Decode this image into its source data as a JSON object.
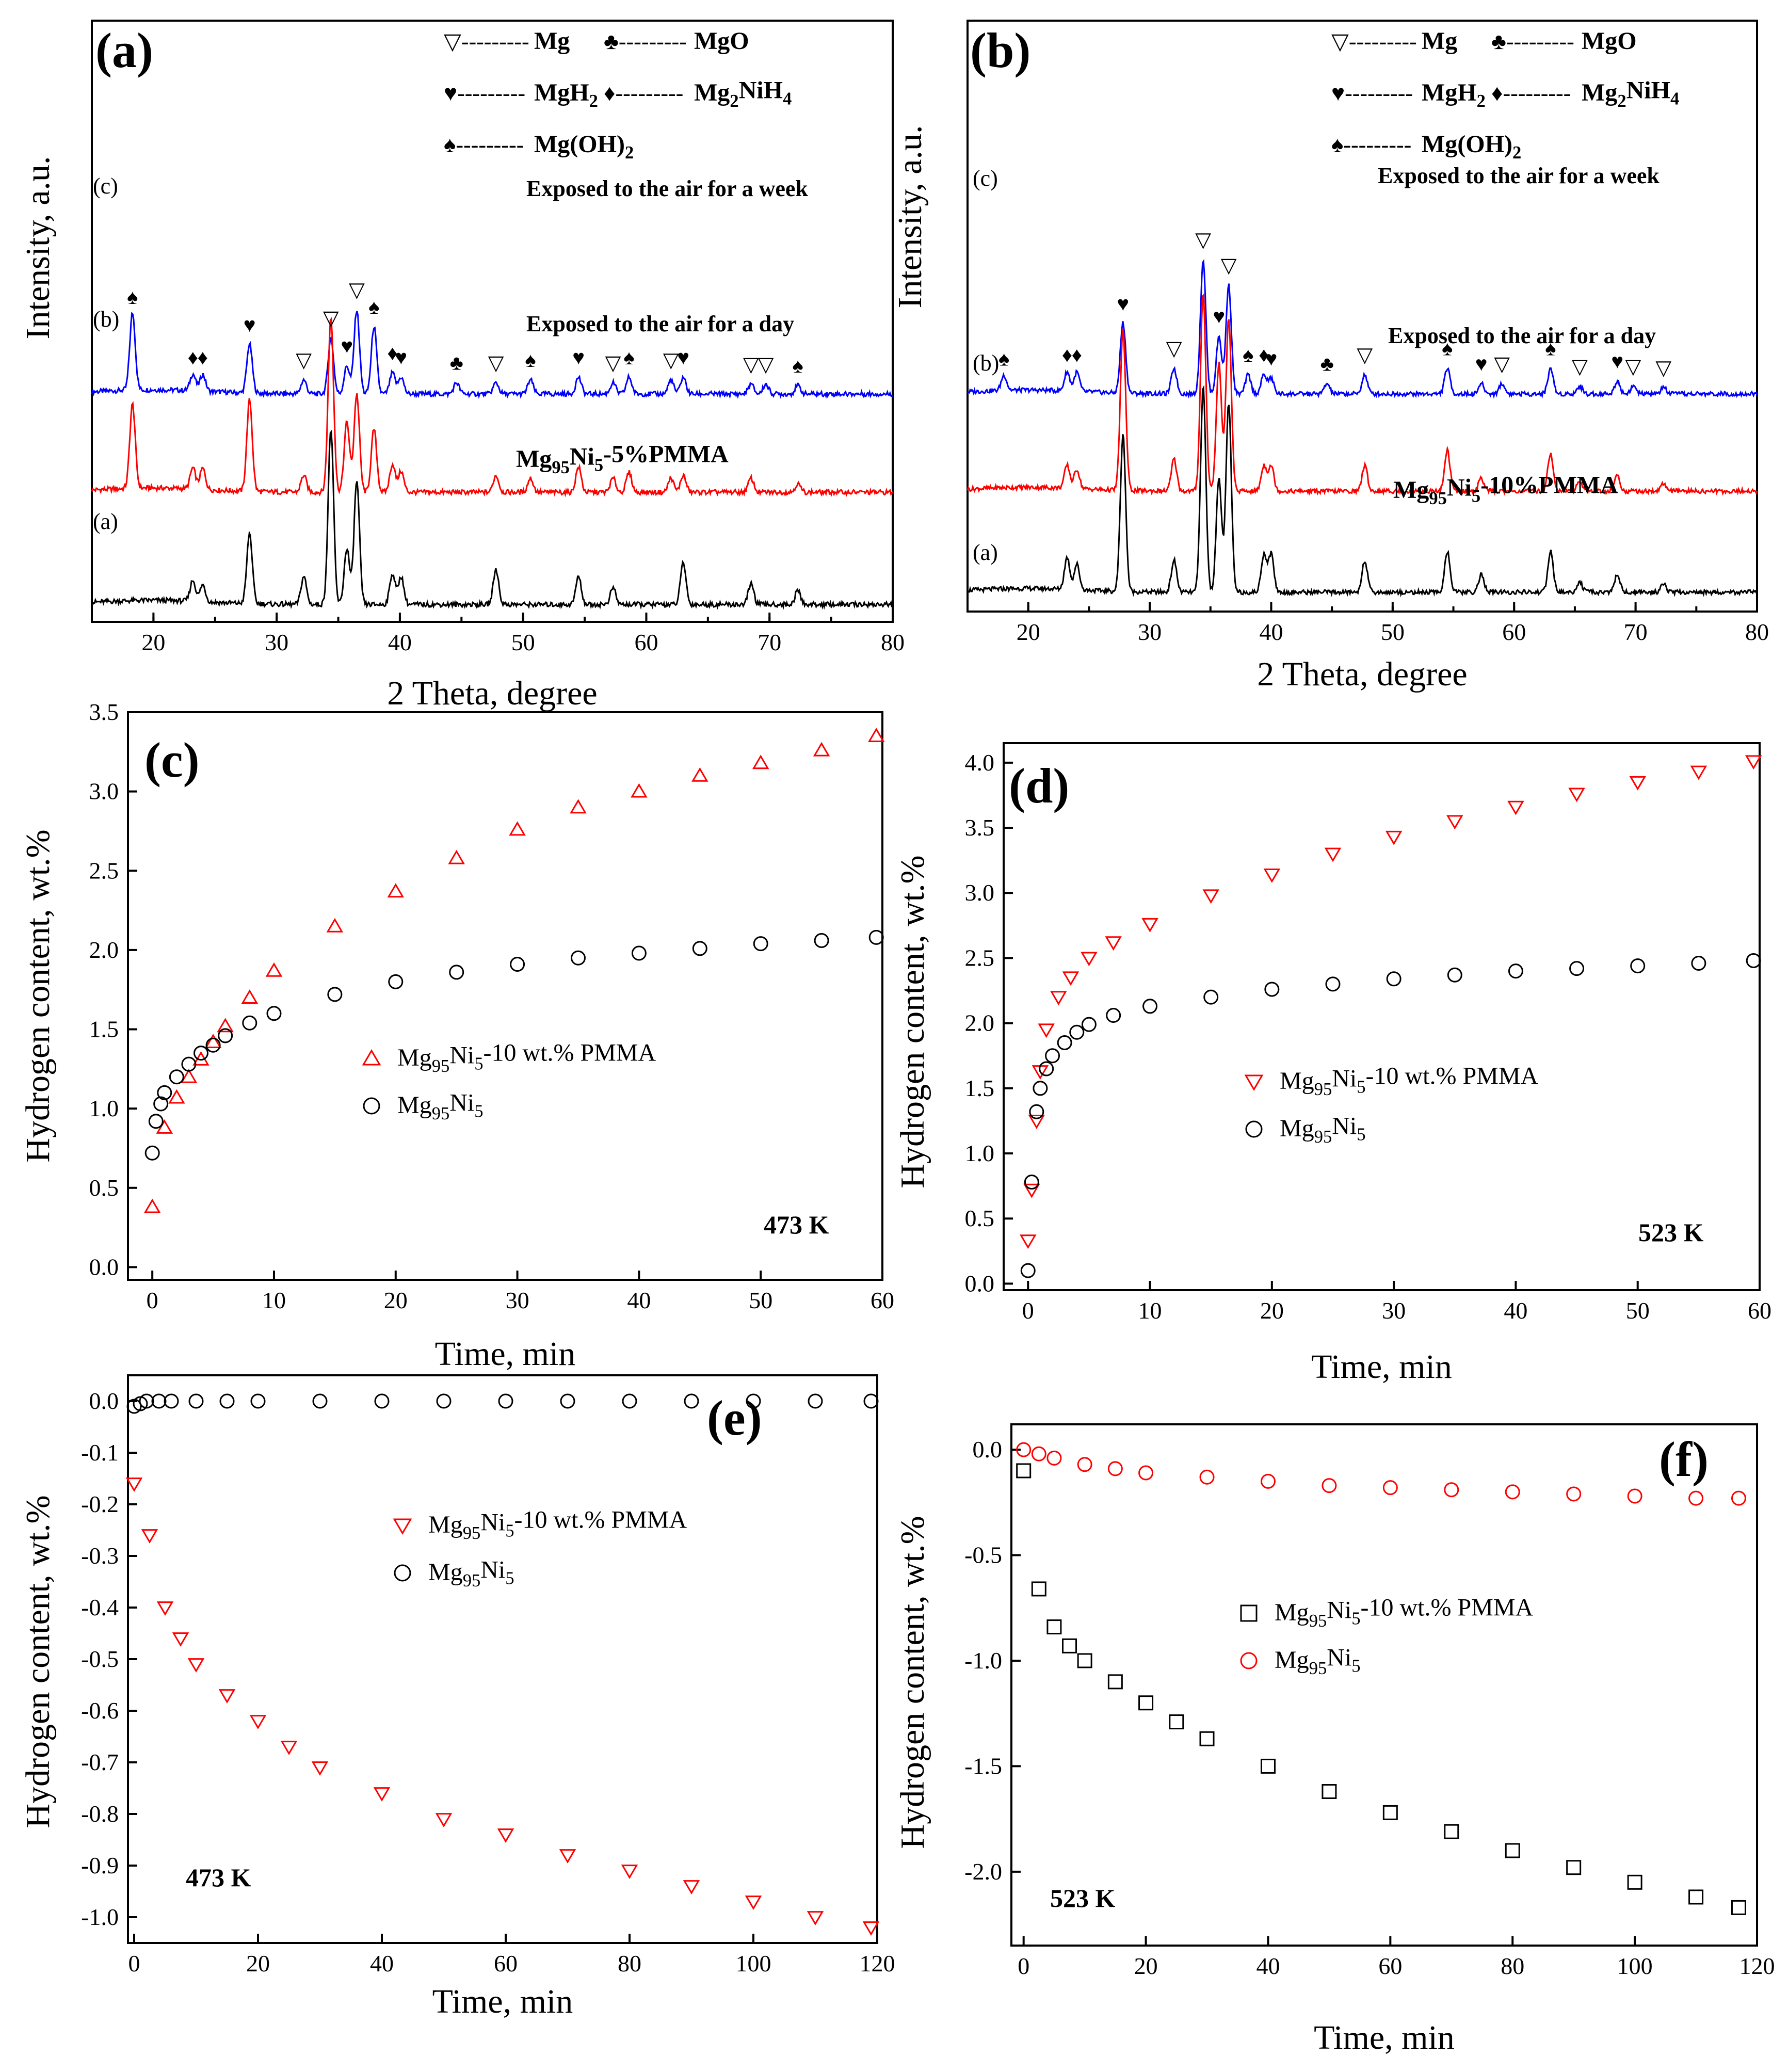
{
  "chart_data": [
    {
      "panel": "(a)",
      "type": "line",
      "xlabel": "2 Theta, degree",
      "ylabel": "Intensity, a.u.",
      "xlim": [
        15,
        80
      ],
      "xticks": [
        "20",
        "30",
        "40",
        "50",
        "60",
        "70",
        "80"
      ],
      "phase_legend": [
        {
          "symbol": "▽",
          "phase": "Mg"
        },
        {
          "symbol": "♣",
          "phase": "MgO"
        },
        {
          "symbol": "♥",
          "phase": "MgH2"
        },
        {
          "symbol": "♦",
          "phase": "Mg2NiH4"
        },
        {
          "symbol": "♠",
          "phase": "Mg(OH)2"
        }
      ],
      "annotations": [
        "Exposed to the air for a week",
        "Exposed to the air for a day",
        "Mg95Ni5-5%PMMA"
      ],
      "series": [
        {
          "name": "(c)",
          "color": "#0000ff",
          "peaks": [
            [
              18.3,
              0.55
            ],
            [
              23.2,
              0.12
            ],
            [
              24.0,
              0.12
            ],
            [
              27.8,
              0.35
            ],
            [
              32.2,
              0.1
            ],
            [
              34.4,
              0.4
            ],
            [
              35.7,
              0.2
            ],
            [
              36.5,
              0.6
            ],
            [
              37.9,
              0.48
            ],
            [
              39.4,
              0.15
            ],
            [
              40.1,
              0.12
            ],
            [
              44.6,
              0.08
            ],
            [
              47.8,
              0.08
            ],
            [
              50.6,
              0.1
            ],
            [
              54.5,
              0.12
            ],
            [
              57.3,
              0.08
            ],
            [
              58.6,
              0.12
            ],
            [
              62.0,
              0.1
            ],
            [
              63.0,
              0.12
            ],
            [
              68.5,
              0.07
            ],
            [
              69.7,
              0.07
            ],
            [
              72.3,
              0.06
            ]
          ]
        },
        {
          "name": "(b)",
          "color": "#ff0000",
          "peaks": [
            [
              18.3,
              0.6
            ],
            [
              23.2,
              0.15
            ],
            [
              24.0,
              0.15
            ],
            [
              27.8,
              0.65
            ],
            [
              32.2,
              0.12
            ],
            [
              34.4,
              1.25
            ],
            [
              35.7,
              0.5
            ],
            [
              36.5,
              0.7
            ],
            [
              37.9,
              0.45
            ],
            [
              39.4,
              0.2
            ],
            [
              40.1,
              0.15
            ],
            [
              47.8,
              0.12
            ],
            [
              50.6,
              0.1
            ],
            [
              54.5,
              0.18
            ],
            [
              57.3,
              0.1
            ],
            [
              58.6,
              0.14
            ],
            [
              62.0,
              0.1
            ],
            [
              63.0,
              0.12
            ],
            [
              68.5,
              0.1
            ],
            [
              72.3,
              0.06
            ]
          ]
        },
        {
          "name": "(a)",
          "color": "#000000",
          "peaks": [
            [
              23.2,
              0.15
            ],
            [
              24.0,
              0.12
            ],
            [
              27.8,
              0.5
            ],
            [
              32.2,
              0.2
            ],
            [
              34.4,
              1.25
            ],
            [
              35.7,
              0.4
            ],
            [
              36.5,
              0.88
            ],
            [
              39.4,
              0.22
            ],
            [
              40.1,
              0.2
            ],
            [
              47.8,
              0.25
            ],
            [
              54.5,
              0.2
            ],
            [
              57.3,
              0.12
            ],
            [
              63.0,
              0.3
            ],
            [
              68.5,
              0.15
            ],
            [
              72.3,
              0.1
            ]
          ]
        }
      ]
    },
    {
      "panel": "(b)",
      "type": "line",
      "xlabel": "2 Theta, degree",
      "ylabel": "Intensity, a.u.",
      "xlim": [
        15,
        80
      ],
      "xticks": [
        "20",
        "30",
        "40",
        "50",
        "60",
        "70",
        "80"
      ],
      "phase_legend": [
        {
          "symbol": "▽",
          "phase": "Mg"
        },
        {
          "symbol": "♣",
          "phase": "MgO"
        },
        {
          "symbol": "♥",
          "phase": "MgH2"
        },
        {
          "symbol": "♦",
          "phase": "Mg2NiH4"
        },
        {
          "symbol": "♠",
          "phase": "Mg(OH)2"
        }
      ],
      "annotations": [
        "Exposed to the air for a week",
        "Exposed to the air for a day",
        "Mg95Ni5-10%PMMA"
      ],
      "series": [
        {
          "name": "(c)",
          "color": "#0000ff",
          "peaks": [
            [
              18.0,
              0.12
            ],
            [
              23.2,
              0.15
            ],
            [
              24.0,
              0.15
            ],
            [
              27.8,
              0.55
            ],
            [
              32.0,
              0.2
            ],
            [
              34.4,
              1.05
            ],
            [
              35.7,
              0.45
            ],
            [
              36.5,
              0.85
            ],
            [
              38.1,
              0.15
            ],
            [
              39.4,
              0.15
            ],
            [
              40.0,
              0.12
            ],
            [
              44.6,
              0.08
            ],
            [
              47.7,
              0.15
            ],
            [
              54.5,
              0.2
            ],
            [
              57.3,
              0.08
            ],
            [
              59.0,
              0.08
            ],
            [
              63.0,
              0.2
            ],
            [
              65.4,
              0.06
            ],
            [
              68.5,
              0.1
            ],
            [
              69.8,
              0.06
            ],
            [
              72.3,
              0.05
            ]
          ]
        },
        {
          "name": "(b)",
          "color": "#ff0000",
          "peaks": [
            [
              23.2,
              0.18
            ],
            [
              24.0,
              0.15
            ],
            [
              27.8,
              1.25
            ],
            [
              32.0,
              0.25
            ],
            [
              34.4,
              1.55
            ],
            [
              35.7,
              1.0
            ],
            [
              36.5,
              1.35
            ],
            [
              39.4,
              0.2
            ],
            [
              40.0,
              0.2
            ],
            [
              47.7,
              0.2
            ],
            [
              54.5,
              0.32
            ],
            [
              57.3,
              0.1
            ],
            [
              63.0,
              0.3
            ],
            [
              65.4,
              0.08
            ],
            [
              68.5,
              0.12
            ],
            [
              72.3,
              0.06
            ]
          ]
        },
        {
          "name": "(a)",
          "color": "#000000",
          "peaks": [
            [
              23.2,
              0.25
            ],
            [
              24.0,
              0.2
            ],
            [
              27.8,
              1.22
            ],
            [
              32.0,
              0.25
            ],
            [
              34.4,
              1.6
            ],
            [
              35.7,
              0.9
            ],
            [
              36.5,
              1.48
            ],
            [
              39.4,
              0.3
            ],
            [
              40.0,
              0.3
            ],
            [
              47.7,
              0.25
            ],
            [
              54.5,
              0.32
            ],
            [
              57.3,
              0.14
            ],
            [
              63.0,
              0.32
            ],
            [
              65.4,
              0.08
            ],
            [
              68.5,
              0.14
            ],
            [
              72.3,
              0.06
            ]
          ]
        }
      ]
    },
    {
      "panel": "(c)",
      "type": "scatter",
      "xlabel": "Time, min",
      "ylabel": "Hydrogen content, wt.%",
      "xlim": [
        -2,
        60
      ],
      "ylim": [
        -0.08,
        3.5
      ],
      "xticks": [
        0,
        10,
        20,
        30,
        40,
        50,
        60
      ],
      "yticks": [
        0.0,
        0.5,
        1.0,
        1.5,
        2.0,
        2.5,
        3.0,
        3.5
      ],
      "annotation": "473 K",
      "series": [
        {
          "name": "Mg95Ni5-10 wt.% PMMA",
          "legend_sub": "Mg₉₅Ni₅-10 wt.% PMMA",
          "marker": "triangle-up",
          "color": "#ff0000",
          "x": [
            0,
            1,
            2,
            3,
            4,
            5,
            6,
            8,
            10,
            15,
            20,
            25,
            30,
            35,
            40,
            45,
            50,
            55,
            59.5
          ],
          "y": [
            0.38,
            0.88,
            1.07,
            1.2,
            1.31,
            1.42,
            1.52,
            1.7,
            1.87,
            2.15,
            2.37,
            2.58,
            2.76,
            2.9,
            3.0,
            3.1,
            3.18,
            3.26,
            3.35
          ]
        },
        {
          "name": "Mg95Ni5",
          "legend_sub": "Mg₉₅Ni₅",
          "marker": "circle",
          "color": "#000000",
          "x": [
            0,
            0.3,
            0.7,
            1,
            2,
            3,
            4,
            5,
            6,
            8,
            10,
            15,
            20,
            25,
            30,
            35,
            40,
            45,
            50,
            55,
            59.5
          ],
          "y": [
            0.72,
            0.92,
            1.03,
            1.1,
            1.2,
            1.28,
            1.35,
            1.4,
            1.46,
            1.54,
            1.6,
            1.72,
            1.8,
            1.86,
            1.91,
            1.95,
            1.98,
            2.01,
            2.04,
            2.06,
            2.08
          ]
        }
      ]
    },
    {
      "panel": "(d)",
      "type": "scatter",
      "xlabel": "Time, min",
      "ylabel": "Hydrogen content, wt.%",
      "xlim": [
        -2,
        60
      ],
      "ylim": [
        -0.05,
        4.15
      ],
      "xticks": [
        0,
        10,
        20,
        30,
        40,
        50,
        60
      ],
      "yticks": [
        0.0,
        0.5,
        1.0,
        1.5,
        2.0,
        2.5,
        3.0,
        3.5,
        4.0
      ],
      "annotation": "523 K",
      "series": [
        {
          "name": "Mg95Ni5-10 wt.% PMMA",
          "legend_sub": "Mg₉₅Ni₅-10 wt.% PMMA",
          "marker": "triangle-down",
          "color": "#ff0000",
          "x": [
            0,
            0.3,
            0.7,
            1,
            1.5,
            2.5,
            3.5,
            5,
            7,
            10,
            15,
            20,
            25,
            30,
            35,
            40,
            45,
            50,
            55,
            59.5
          ],
          "y": [
            0.33,
            0.72,
            1.25,
            1.63,
            1.95,
            2.2,
            2.35,
            2.5,
            2.62,
            2.76,
            2.98,
            3.14,
            3.3,
            3.43,
            3.55,
            3.66,
            3.76,
            3.85,
            3.93,
            4.01
          ]
        },
        {
          "name": "Mg95Ni5",
          "legend_sub": "Mg₉₅Ni₅",
          "marker": "circle",
          "color": "#000000",
          "x": [
            0,
            0.3,
            0.7,
            1,
            1.5,
            2,
            3,
            4,
            5,
            7,
            10,
            15,
            20,
            25,
            30,
            35,
            40,
            45,
            50,
            55,
            59.5
          ],
          "y": [
            0.1,
            0.78,
            1.32,
            1.5,
            1.65,
            1.75,
            1.85,
            1.93,
            1.99,
            2.06,
            2.13,
            2.2,
            2.26,
            2.3,
            2.34,
            2.37,
            2.4,
            2.42,
            2.44,
            2.46,
            2.48
          ]
        }
      ]
    },
    {
      "panel": "(e)",
      "type": "scatter",
      "xlabel": "Time, min",
      "ylabel": "Hydrogen content, wt.%",
      "xlim": [
        -1,
        120
      ],
      "ylim": [
        -1.05,
        0.05
      ],
      "xticks": [
        0,
        20,
        40,
        60,
        80,
        100,
        120
      ],
      "yticks": [
        -1.0,
        -0.9,
        -0.8,
        -0.7,
        -0.6,
        -0.5,
        -0.4,
        -0.3,
        -0.2,
        -0.1,
        0.0
      ],
      "annotation": "473 K",
      "series": [
        {
          "name": "Mg95Ni5-10 wt.% PMMA",
          "legend_sub": "Mg₉₅Ni₅-10 wt.% PMMA",
          "marker": "triangle-down",
          "color": "#ff0000",
          "x": [
            0,
            2.5,
            5,
            7.5,
            10,
            15,
            20,
            25,
            30,
            40,
            50,
            60,
            70,
            80,
            90,
            100,
            110,
            119
          ],
          "y": [
            -0.16,
            -0.26,
            -0.4,
            -0.46,
            -0.51,
            -0.57,
            -0.62,
            -0.67,
            -0.71,
            -0.76,
            -0.81,
            -0.84,
            -0.88,
            -0.91,
            -0.94,
            -0.97,
            -1.0,
            -1.02
          ]
        },
        {
          "name": "Mg95Ni5",
          "legend_sub": "Mg₉₅Ni₅",
          "marker": "circle",
          "color": "#000000",
          "x": [
            0,
            1,
            2,
            4,
            6,
            10,
            15,
            20,
            30,
            40,
            50,
            60,
            70,
            80,
            90,
            100,
            110,
            119
          ],
          "y": [
            -0.01,
            -0.005,
            0,
            0,
            0,
            0,
            0,
            0,
            0,
            0,
            0,
            0,
            0,
            0,
            0,
            0,
            0,
            0
          ]
        }
      ]
    },
    {
      "panel": "(f)",
      "type": "scatter",
      "xlabel": "Time, min",
      "ylabel": "Hydrogen content, wt.%",
      "xlim": [
        -2,
        120
      ],
      "ylim": [
        -2.35,
        0.12
      ],
      "xticks": [
        0,
        20,
        40,
        60,
        80,
        100,
        120
      ],
      "yticks": [
        -2.0,
        -1.5,
        -1.0,
        -0.5,
        0.0
      ],
      "annotation": "523 K",
      "series": [
        {
          "name": "Mg95Ni5-10 wt.% PMMA",
          "legend_sub": "Mg₉₅Ni₅-10 wt.% PMMA",
          "marker": "square",
          "color": "#000000",
          "x": [
            0,
            2.5,
            5,
            7.5,
            10,
            15,
            20,
            25,
            30,
            40,
            50,
            60,
            70,
            80,
            90,
            100,
            110,
            117
          ],
          "y": [
            -0.1,
            -0.66,
            -0.84,
            -0.93,
            -1.0,
            -1.1,
            -1.2,
            -1.29,
            -1.37,
            -1.5,
            -1.62,
            -1.72,
            -1.81,
            -1.9,
            -1.98,
            -2.05,
            -2.12,
            -2.17
          ]
        },
        {
          "name": "Mg95Ni5",
          "legend_sub": "Mg₉₅Ni₅",
          "marker": "circle",
          "color": "#ff0000",
          "x": [
            0,
            2.5,
            5,
            10,
            15,
            20,
            30,
            40,
            50,
            60,
            70,
            80,
            90,
            100,
            110,
            117
          ],
          "y": [
            0,
            -0.02,
            -0.04,
            -0.07,
            -0.09,
            -0.11,
            -0.13,
            -0.15,
            -0.17,
            -0.18,
            -0.19,
            -0.2,
            -0.21,
            -0.22,
            -0.23,
            -0.23
          ]
        }
      ]
    }
  ]
}
